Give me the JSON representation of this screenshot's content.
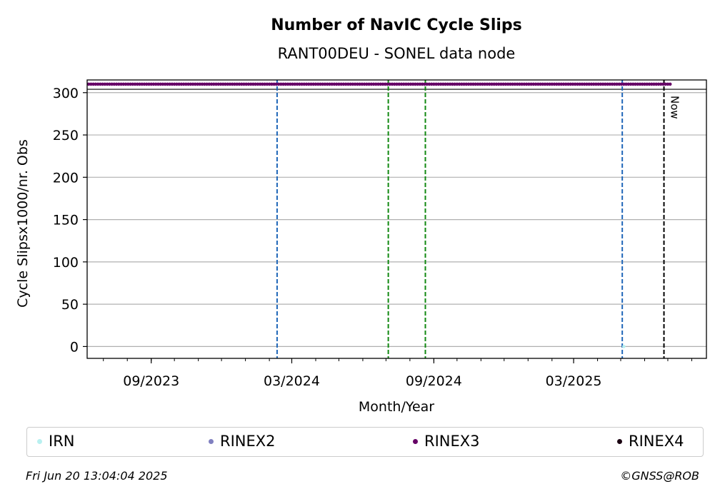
{
  "chart_data": {
    "type": "scatter",
    "title": "Number of NavIC Cycle Slips",
    "subtitle": "RANT00DEU - SONEL data node",
    "xlabel": "Month/Year",
    "ylabel": "Cycle Slipsx1000/nr. Obs",
    "x_ticks": [
      "09/2023",
      "03/2024",
      "09/2024",
      "03/2025"
    ],
    "xlim": [
      "2023-06-10",
      "2025-08-20"
    ],
    "y_ticks": [
      0,
      50,
      100,
      150,
      200,
      250,
      300
    ],
    "ylim": [
      -14,
      315
    ],
    "grid": "horizontal",
    "series": [
      {
        "name": "IRN",
        "color": "#b8f0f0",
        "points": [
          {
            "date": "2025-05-05",
            "y": 0
          }
        ]
      },
      {
        "name": "RINEX2",
        "color": "#8080c0",
        "points": []
      },
      {
        "name": "RINEX3",
        "color": "#660066",
        "range": {
          "start": "2023-06-12",
          "end": "2025-07-06",
          "y": 310
        }
      },
      {
        "name": "RINEX4",
        "color": "#1a0011",
        "points": []
      }
    ],
    "vlines": [
      {
        "date": "2024-02-11",
        "color": "#1f66b8",
        "style": "dashed"
      },
      {
        "date": "2024-07-04",
        "color": "#118811",
        "style": "dashed"
      },
      {
        "date": "2024-08-21",
        "color": "#118811",
        "style": "dashed"
      },
      {
        "date": "2025-05-03",
        "color": "#1f66b8",
        "style": "dashed"
      },
      {
        "date": "2025-06-26",
        "color": "#000000",
        "style": "dashed",
        "label": "Now"
      }
    ],
    "now_label": "Now",
    "legend": "bottom"
  },
  "footer": {
    "timestamp": "Fri Jun 20 13:04:04 2025",
    "credit": "©GNSS@ROB"
  }
}
